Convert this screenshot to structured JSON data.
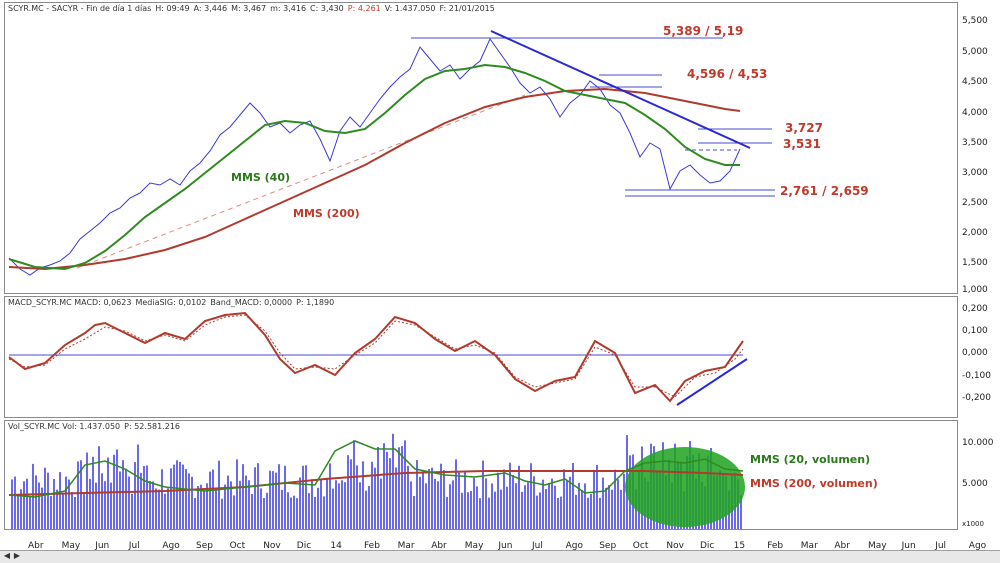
{
  "price_pane": {
    "title_parts": [
      "SCYR.MC - SACYR - Fin de día 1 días",
      "H: 09:49",
      "A: 3,446",
      "M: 3,467",
      "m: 3,416",
      "C: 3,430",
      "P: 4,261",
      "V: 1.437.050",
      "F: 21/01/2015"
    ],
    "y_ticks": [
      "5,500",
      "5,000",
      "4,500",
      "4,000",
      "3,500",
      "3,000",
      "2,500",
      "2,000",
      "1,500",
      "1,000"
    ],
    "levels": {
      "l1": "5,389 / 5,19",
      "l2": "4,596 / 4,53",
      "l3": "3,727",
      "l4": "3,531",
      "l5": "2,761 / 2,659"
    },
    "ma40_label": "MMS (40)",
    "ma200_label": "MMS (200)"
  },
  "macd_pane": {
    "title_parts": [
      "MACD_SCYR.MC MACD: 0,0623",
      "MediaSIG: 0,0102",
      "Band_MACD: 0,0000",
      "P: 1,1890"
    ],
    "y_ticks": [
      "0,200",
      "0,100",
      "0,000",
      "-0,100",
      "-0,200"
    ]
  },
  "vol_pane": {
    "title_parts": [
      "Vol_SCYR.MC Vol: 1.437.050",
      "P: 52.581.216"
    ],
    "y_ticks": [
      "10.000",
      "5.000"
    ],
    "scale_note": "x1000",
    "ma20_label": "MMS (20, volumen)",
    "ma200_label": "MMS (200, volumen)"
  },
  "x_axis": [
    "Abr",
    "May",
    "Jun",
    "Jul",
    "Ago",
    "Sep",
    "Oct",
    "Nov",
    "Dic",
    "14",
    "Feb",
    "Mar",
    "Abr",
    "May",
    "Jun",
    "Jul",
    "Ago",
    "Sep",
    "Oct",
    "Nov",
    "Dic",
    "15",
    "Feb",
    "Mar",
    "Abr",
    "May",
    "Jun",
    "Jul",
    "Ago"
  ],
  "colors": {
    "price": "#3a3ad6",
    "ma40": "#2e8b20",
    "ma200": "#b03a2e",
    "trend": "#2a2ad0",
    "volume": "#6a6ae6",
    "highlight": "#1fa21f"
  }
}
